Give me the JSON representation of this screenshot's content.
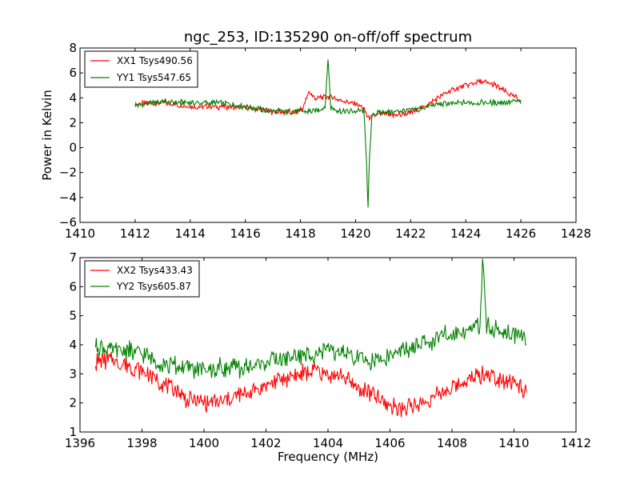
{
  "figure": {
    "title": "ngc_253, ID:135290 on-off/off spectrum",
    "ylabel": "Power in Kelvin",
    "xlabel": "Frequency (MHz)"
  },
  "chart_data": [
    {
      "type": "line",
      "title": "ngc_253, ID:135290 on-off/off spectrum",
      "xlabel": "",
      "ylabel": "Power in Kelvin",
      "xlim": [
        1410,
        1428
      ],
      "ylim": [
        -6,
        8
      ],
      "xticks": [
        1410,
        1412,
        1414,
        1416,
        1418,
        1420,
        1422,
        1424,
        1426,
        1428
      ],
      "yticks": [
        -6,
        -4,
        -2,
        0,
        2,
        4,
        6,
        8
      ],
      "legend_position": "top-left",
      "grid": false,
      "x_range": [
        1412,
        1426
      ],
      "series": [
        {
          "name": "XX1 Tsys490.56",
          "color": "#ff0000",
          "x": [
            1412,
            1413,
            1414,
            1415,
            1416,
            1417,
            1417.8,
            1418.1,
            1418.3,
            1418.5,
            1419,
            1419.5,
            1420,
            1420.3,
            1420.4,
            1420.5,
            1420.6,
            1421,
            1421.5,
            1422,
            1422.5,
            1423,
            1423.5,
            1424,
            1424.5,
            1425,
            1425.5,
            1426
          ],
          "y": [
            3.5,
            3.6,
            3.3,
            3.3,
            3.2,
            2.9,
            2.8,
            3.2,
            4.5,
            4.0,
            4.1,
            3.8,
            3.5,
            3.2,
            2.6,
            2.4,
            2.5,
            2.7,
            2.6,
            2.8,
            3.3,
            4.0,
            4.6,
            5.0,
            5.3,
            5.1,
            4.4,
            3.8
          ]
        },
        {
          "name": "YY1 Tsys547.65",
          "color": "#008000",
          "x": [
            1412,
            1413,
            1414,
            1415,
            1416,
            1417,
            1418,
            1418.5,
            1418.9,
            1419.0,
            1419.1,
            1419.5,
            1420,
            1420.3,
            1420.4,
            1420.45,
            1420.5,
            1420.6,
            1421,
            1422,
            1423,
            1424,
            1425,
            1426
          ],
          "y": [
            3.4,
            3.7,
            3.6,
            3.6,
            3.3,
            2.9,
            2.9,
            2.9,
            3.3,
            7.2,
            3.2,
            2.9,
            2.9,
            3.0,
            -1.0,
            -5.1,
            -1.2,
            2.7,
            2.8,
            3.0,
            3.5,
            3.6,
            3.6,
            3.7
          ]
        }
      ]
    },
    {
      "type": "line",
      "title": "",
      "xlabel": "Frequency (MHz)",
      "ylabel": "",
      "xlim": [
        1396,
        1412
      ],
      "ylim": [
        1,
        7
      ],
      "xticks": [
        1396,
        1398,
        1400,
        1402,
        1404,
        1406,
        1408,
        1410,
        1412
      ],
      "yticks": [
        1,
        2,
        3,
        4,
        5,
        6,
        7
      ],
      "legend_position": "top-left",
      "grid": false,
      "x_range": [
        1396.5,
        1410.4
      ],
      "series": [
        {
          "name": "XX2 Tsys433.43",
          "color": "#ff0000",
          "x": [
            1396.5,
            1397,
            1397.5,
            1398,
            1398.5,
            1399,
            1399.5,
            1400,
            1400.5,
            1401,
            1401.5,
            1402,
            1402.5,
            1403,
            1403.5,
            1404,
            1404.5,
            1405,
            1405.5,
            1406,
            1406.5,
            1407,
            1407.5,
            1408,
            1408.5,
            1409,
            1409.5,
            1410,
            1410.4
          ],
          "y": [
            3.4,
            3.5,
            3.3,
            3.1,
            2.8,
            2.5,
            2.1,
            2.0,
            2.0,
            2.2,
            2.4,
            2.6,
            2.8,
            3.0,
            3.1,
            3.0,
            2.9,
            2.5,
            2.2,
            1.9,
            1.8,
            2.0,
            2.2,
            2.5,
            2.8,
            3.0,
            2.9,
            2.7,
            2.4
          ]
        },
        {
          "name": "YY2 Tsys605.87",
          "color": "#008000",
          "x": [
            1396.5,
            1397,
            1397.5,
            1398,
            1398.5,
            1399,
            1399.5,
            1400,
            1400.5,
            1401,
            1401.5,
            1402,
            1402.5,
            1403,
            1403.5,
            1404,
            1404.5,
            1405,
            1405.5,
            1406,
            1406.5,
            1407,
            1407.5,
            1408,
            1408.5,
            1408.9,
            1409.0,
            1409.1,
            1409.5,
            1410,
            1410.4
          ],
          "y": [
            4.0,
            3.8,
            3.8,
            3.7,
            3.4,
            3.3,
            3.2,
            3.1,
            3.2,
            3.2,
            3.2,
            3.4,
            3.5,
            3.6,
            3.7,
            3.8,
            3.7,
            3.5,
            3.4,
            3.6,
            3.8,
            4.0,
            4.2,
            4.4,
            4.5,
            4.7,
            7.0,
            4.6,
            4.5,
            4.4,
            4.3
          ]
        }
      ]
    }
  ]
}
